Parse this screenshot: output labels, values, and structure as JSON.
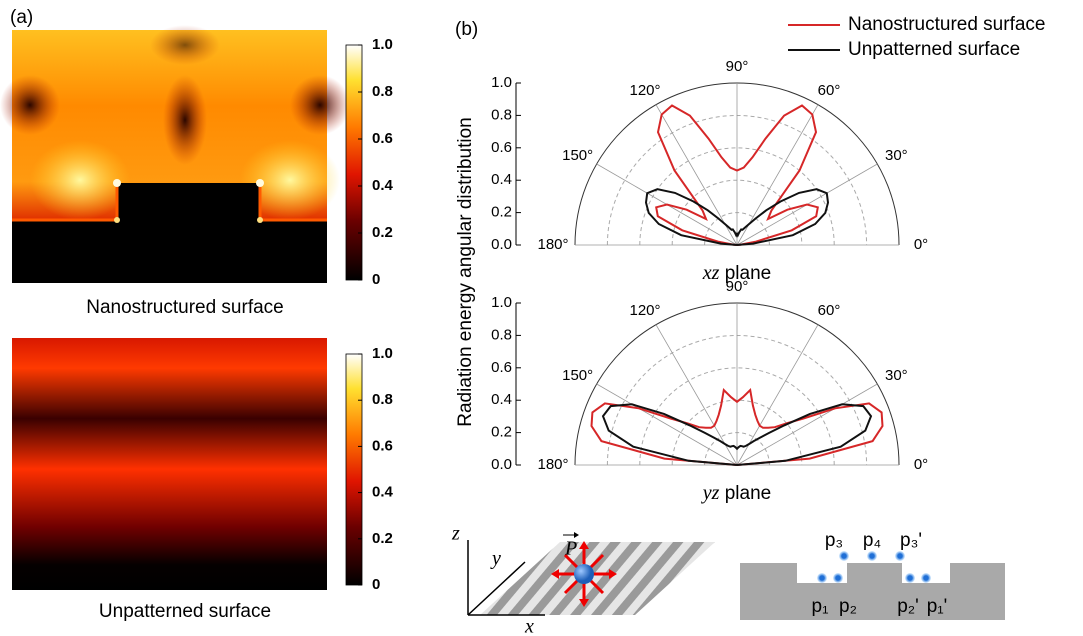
{
  "panel_labels": [
    "(a)",
    "(b)"
  ],
  "chart_data": [
    {
      "type": "heatmap",
      "caption": "Nanostructured surface",
      "clim": [
        0,
        1
      ],
      "colorbar_ticks": [
        0,
        0.2,
        0.4,
        0.6,
        0.8,
        {
          "value": 1,
          "label": "1.0"
        }
      ]
    },
    {
      "type": "heatmap",
      "caption": "Unpatterned surface",
      "clim": [
        0,
        1
      ],
      "colorbar_ticks": [
        0,
        0.2,
        0.4,
        0.6,
        0.8,
        {
          "value": 1,
          "label": "1.0"
        }
      ]
    },
    {
      "type": "polar",
      "ylabel": "Radiation energy angular distribution",
      "xlabel": {
        "var": "xz",
        "text": "plane"
      },
      "rlim": [
        0,
        1
      ],
      "yticks": [
        {
          "value": 0,
          "label": "0.0"
        },
        0.2,
        0.4,
        0.6,
        0.8,
        {
          "value": 1,
          "label": "1.0"
        }
      ],
      "thetaticks": [
        {
          "value": 0,
          "label": "0°"
        },
        {
          "value": 30,
          "label": "30°"
        },
        {
          "value": 60,
          "label": "60°"
        },
        {
          "value": 90,
          "label": "90°"
        },
        {
          "value": 120,
          "label": "120°"
        },
        {
          "value": 150,
          "label": "150°"
        },
        {
          "value": 180,
          "label": "180°"
        }
      ],
      "x": [
        0,
        5,
        10,
        15,
        20,
        25,
        30,
        35,
        40,
        45,
        50,
        55,
        60,
        65,
        70,
        75,
        80,
        85,
        90,
        95,
        100,
        105,
        110,
        115,
        120,
        125,
        130,
        135,
        140,
        145,
        150,
        155,
        160,
        165,
        170,
        175,
        180
      ],
      "series": [
        {
          "name": "Nanostructured surface",
          "color": "#d62728",
          "values": [
            0,
            0.02,
            0.12,
            0.35,
            0.52,
            0.55,
            0.5,
            0.38,
            0.25,
            0.3,
            0.6,
            0.85,
            0.93,
            0.95,
            0.85,
            0.68,
            0.55,
            0.48,
            0.46,
            0.48,
            0.55,
            0.68,
            0.85,
            0.95,
            0.93,
            0.85,
            0.6,
            0.3,
            0.25,
            0.38,
            0.5,
            0.55,
            0.52,
            0.35,
            0.12,
            0.02,
            0
          ]
        },
        {
          "name": "Unpatterned surface",
          "color": "#111111",
          "values": [
            0,
            0.1,
            0.35,
            0.5,
            0.58,
            0.62,
            0.64,
            0.6,
            0.5,
            0.38,
            0.28,
            0.2,
            0.15,
            0.12,
            0.1,
            0.1,
            0.08,
            0.06,
            0.07,
            0.06,
            0.08,
            0.1,
            0.1,
            0.12,
            0.15,
            0.2,
            0.28,
            0.38,
            0.5,
            0.6,
            0.64,
            0.62,
            0.58,
            0.5,
            0.35,
            0.1,
            0
          ]
        }
      ]
    },
    {
      "type": "polar",
      "xlabel": {
        "var": "yz",
        "text": "plane"
      },
      "rlim": [
        0,
        1
      ],
      "yticks": [
        {
          "value": 0,
          "label": "0.0"
        },
        0.2,
        0.4,
        0.6,
        0.8,
        {
          "value": 1,
          "label": "1.0"
        }
      ],
      "thetaticks": [
        {
          "value": 0,
          "label": "0°"
        },
        {
          "value": 30,
          "label": "30°"
        },
        {
          "value": 60,
          "label": "60°"
        },
        {
          "value": 90,
          "label": "90°"
        },
        {
          "value": 120,
          "label": "120°"
        },
        {
          "value": 150,
          "label": "150°"
        },
        {
          "value": 180,
          "label": "180°"
        }
      ],
      "x": [
        0,
        5,
        10,
        15,
        20,
        25,
        30,
        35,
        40,
        45,
        50,
        55,
        60,
        65,
        70,
        75,
        80,
        85,
        90,
        95,
        100,
        105,
        110,
        115,
        120,
        125,
        130,
        135,
        140,
        145,
        150,
        155,
        160,
        165,
        170,
        175,
        180
      ],
      "series": [
        {
          "color": "#d62728",
          "values": [
            0,
            0.45,
            0.85,
            0.93,
            0.95,
            0.9,
            0.7,
            0.5,
            0.4,
            0.33,
            0.3,
            0.28,
            0.28,
            0.3,
            0.33,
            0.38,
            0.47,
            0.42,
            0.39,
            0.42,
            0.47,
            0.38,
            0.33,
            0.3,
            0.28,
            0.28,
            0.3,
            0.33,
            0.4,
            0.5,
            0.7,
            0.9,
            0.95,
            0.93,
            0.85,
            0.45,
            0
          ]
        },
        {
          "color": "#111111",
          "values": [
            0,
            0.3,
            0.65,
            0.82,
            0.88,
            0.86,
            0.75,
            0.55,
            0.38,
            0.28,
            0.22,
            0.18,
            0.15,
            0.13,
            0.12,
            0.12,
            0.12,
            0.11,
            0.1,
            0.11,
            0.12,
            0.12,
            0.12,
            0.13,
            0.15,
            0.18,
            0.22,
            0.28,
            0.38,
            0.55,
            0.75,
            0.86,
            0.88,
            0.82,
            0.65,
            0.3,
            0
          ]
        }
      ]
    }
  ],
  "diagram": {
    "axes": [
      "z",
      "y",
      "x"
    ],
    "dipole": "P",
    "positions": [
      "p₃",
      "p₄",
      "p₃'",
      "p₁",
      "p₂",
      "p₂'",
      "p₁'"
    ]
  }
}
